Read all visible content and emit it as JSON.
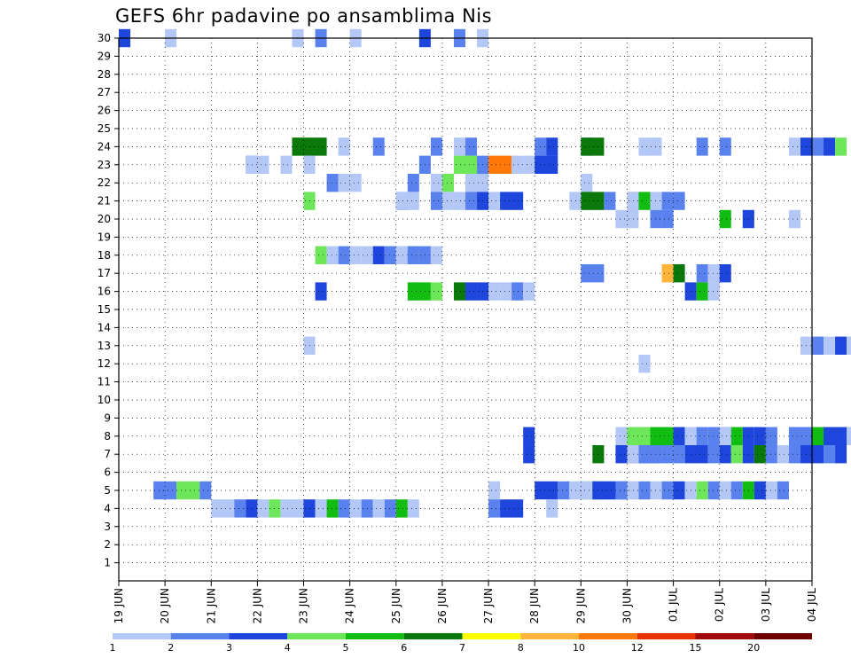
{
  "title": "GEFS 6hr padavine po ansamblima Nis",
  "chart_data": {
    "type": "heatmap",
    "title": "GEFS 6hr padavine po ansamblima Nis",
    "y_ticks": [
      1,
      2,
      3,
      4,
      5,
      6,
      7,
      8,
      9,
      10,
      11,
      12,
      13,
      14,
      15,
      16,
      17,
      18,
      19,
      20,
      21,
      22,
      23,
      24,
      25,
      26,
      27,
      28,
      29,
      30
    ],
    "ylim": [
      0,
      30
    ],
    "x_ticks": [
      "19 JUN",
      "20 JUN",
      "21 JUN",
      "22 JUN",
      "23 JUN",
      "24 JUN",
      "25 JUN",
      "26 JUN",
      "27 JUN",
      "28 JUN",
      "29 JUN",
      "30 JUN",
      "01 JUL",
      "02 JUL",
      "03 JUL",
      "04 JUL"
    ],
    "x_steps_per_day": 4,
    "grid": true,
    "colorbar": {
      "labels": [
        "1",
        "2",
        "3",
        "4",
        "5",
        "6",
        "7",
        "8",
        "10",
        "12",
        "15",
        "20"
      ],
      "colors": [
        "#b4c8f8",
        "#5a82ee",
        "#1e46dc",
        "#6ee65a",
        "#10bd10",
        "#0a780a",
        "#ffff00",
        "#ffb43c",
        "#ff780a",
        "#e63205",
        "#a00a0a",
        "#6e0000"
      ]
    },
    "cells": [
      [
        0,
        0,
        3
      ],
      [
        3,
        0,
        1
      ],
      [
        4,
        1,
        1
      ],
      [
        5,
        1,
        2
      ],
      [
        4,
        3,
        1
      ],
      [
        4,
        4,
        1
      ],
      [
        15,
        15,
        1
      ],
      [
        17,
        17,
        2
      ],
      [
        20,
        20,
        1
      ],
      [
        26,
        26,
        3
      ],
      [
        29,
        29,
        2
      ],
      [
        31,
        31,
        1
      ],
      [
        15,
        16,
        4
      ],
      [
        15,
        17,
        6
      ],
      [
        19,
        19,
        1
      ],
      [
        22,
        22,
        2
      ],
      [
        27,
        27,
        2
      ],
      [
        29,
        29,
        1
      ],
      [
        30,
        30,
        2
      ],
      [
        36,
        36,
        2
      ],
      [
        37,
        37,
        3
      ],
      [
        40,
        40,
        2
      ],
      [
        40,
        41,
        6
      ],
      [
        45,
        45,
        1
      ],
      [
        46,
        46,
        1
      ],
      [
        50,
        50,
        2
      ],
      [
        52,
        52,
        2
      ],
      [
        58,
        58,
        1
      ],
      [
        59,
        59,
        3
      ],
      [
        60,
        60,
        2
      ],
      [
        61,
        61,
        3
      ],
      [
        62,
        62,
        4
      ],
      [
        64,
        64,
        1
      ],
      [
        65,
        65,
        1
      ],
      [
        66,
        66,
        1
      ],
      [
        67,
        67,
        3
      ],
      [
        68,
        68,
        5
      ],
      [
        69,
        69,
        5
      ],
      [
        70,
        70,
        1
      ],
      [
        71,
        71,
        3
      ],
      [
        3,
        2,
        2
      ],
      [
        11,
        11,
        3
      ],
      [
        11,
        12,
        1
      ],
      [
        14,
        14,
        1
      ],
      [
        16,
        16,
        1
      ],
      [
        26,
        26,
        2
      ],
      [
        29,
        30,
        4
      ],
      [
        31,
        31,
        2
      ],
      [
        32,
        33,
        9
      ],
      [
        34,
        34,
        1
      ],
      [
        35,
        35,
        1
      ],
      [
        36,
        35,
        2
      ],
      [
        36,
        37,
        3
      ],
      [
        7,
        6,
        1
      ],
      [
        18,
        18,
        2
      ],
      [
        19,
        19,
        1
      ],
      [
        20,
        20,
        1
      ],
      [
        25,
        25,
        2
      ],
      [
        27,
        27,
        1
      ],
      [
        28,
        28,
        4
      ],
      [
        30,
        31,
        1
      ],
      [
        37,
        36,
        2
      ],
      [
        40,
        40,
        1
      ],
      [
        40,
        41,
        6
      ],
      [
        42,
        42,
        2
      ],
      [
        44,
        44,
        10
      ],
      [
        16,
        16,
        4
      ],
      [
        24,
        24,
        2
      ],
      [
        24,
        25,
        1
      ],
      [
        27,
        27,
        2
      ],
      [
        28,
        28,
        1
      ],
      [
        29,
        29,
        1
      ],
      [
        30,
        30,
        2
      ],
      [
        31,
        31,
        3
      ],
      [
        32,
        32,
        1
      ],
      [
        33,
        34,
        3
      ],
      [
        39,
        39,
        1
      ],
      [
        44,
        44,
        1
      ],
      [
        45,
        45,
        5
      ],
      [
        46,
        46,
        1
      ],
      [
        47,
        47,
        2
      ],
      [
        48,
        48,
        2
      ],
      [
        49,
        49,
        3
      ],
      [
        50,
        50,
        5
      ],
      [
        51,
        51,
        1
      ],
      [
        17,
        17,
        3
      ],
      [
        25,
        25,
        1
      ],
      [
        25,
        26,
        5
      ],
      [
        27,
        27,
        4
      ],
      [
        29,
        29,
        6
      ],
      [
        30,
        30,
        3
      ],
      [
        31,
        31,
        3
      ],
      [
        32,
        32,
        1
      ],
      [
        33,
        33,
        1
      ],
      [
        34,
        34,
        2
      ],
      [
        35,
        35,
        1
      ],
      [
        43,
        43,
        3
      ],
      [
        44,
        44,
        11
      ],
      [
        45,
        46,
        3
      ],
      [
        35,
        35,
        3
      ],
      [
        41,
        41,
        6
      ],
      [
        44,
        44,
        1
      ],
      [
        45,
        45,
        2
      ],
      [
        46,
        46,
        2
      ],
      [
        47,
        47,
        2
      ],
      [
        48,
        48,
        2
      ],
      [
        49,
        50,
        3
      ],
      [
        51,
        51,
        2
      ],
      [
        52,
        52,
        3
      ],
      [
        53,
        53,
        4
      ],
      [
        54,
        54,
        3
      ],
      [
        55,
        55,
        6
      ],
      [
        56,
        56,
        2
      ],
      [
        57,
        57,
        1
      ],
      [
        58,
        58,
        2
      ],
      [
        59,
        59,
        3
      ],
      [
        60,
        60,
        3
      ],
      [
        61,
        61,
        2
      ],
      [
        62,
        62,
        3
      ],
      [
        63,
        63,
        5
      ],
      [
        64,
        65,
        3
      ],
      [
        66,
        67,
        2
      ],
      [
        35,
        35,
        3
      ],
      [
        43,
        43,
        1
      ],
      [
        44,
        45,
        4
      ],
      [
        46,
        47,
        5
      ],
      [
        48,
        48,
        3
      ],
      [
        49,
        49,
        1
      ],
      [
        50,
        50,
        2
      ],
      [
        51,
        51,
        2
      ],
      [
        52,
        52,
        3
      ],
      [
        53,
        53,
        5
      ],
      [
        54,
        54,
        3
      ],
      [
        55,
        55,
        3
      ],
      [
        56,
        56,
        2
      ],
      [
        58,
        59,
        2
      ],
      [
        60,
        60,
        5
      ],
      [
        61,
        62,
        3
      ],
      [
        63,
        63,
        1
      ],
      [
        64,
        64,
        4
      ],
      [
        65,
        65,
        1
      ],
      [
        52,
        52,
        1
      ],
      [
        64,
        64,
        2
      ],
      [
        65,
        65,
        1
      ],
      [
        66,
        66,
        5
      ],
      [
        67,
        67,
        6
      ],
      [
        68,
        68,
        1
      ],
      [
        45,
        45,
        1
      ],
      [
        47,
        47,
        8
      ],
      [
        48,
        48,
        6
      ],
      [
        50,
        50,
        2
      ],
      [
        51,
        51,
        1
      ],
      [
        52,
        52,
        3
      ],
      [
        40,
        41,
        2
      ],
      [
        43,
        43,
        1
      ],
      [
        44,
        44,
        1
      ],
      [
        46,
        46,
        2
      ],
      [
        47,
        47,
        2
      ],
      [
        52,
        52,
        5
      ],
      [
        54,
        54,
        3
      ],
      [
        58,
        58,
        1
      ],
      [
        59,
        59,
        1
      ],
      [
        60,
        60,
        2
      ],
      [
        61,
        61,
        1
      ],
      [
        62,
        62,
        3
      ],
      [
        63,
        63,
        1
      ],
      [
        16,
        16,
        1
      ],
      [
        17,
        17,
        4
      ],
      [
        18,
        18,
        1
      ],
      [
        19,
        19,
        2
      ],
      [
        20,
        20,
        1
      ],
      [
        21,
        21,
        1
      ],
      [
        22,
        22,
        3
      ],
      [
        23,
        23,
        2
      ],
      [
        24,
        24,
        1
      ],
      [
        25,
        25,
        4
      ],
      [
        26,
        26,
        2
      ],
      [
        24,
        24,
        1
      ],
      [
        25,
        25,
        2
      ],
      [
        27,
        27,
        1
      ],
      [
        32,
        32,
        1
      ],
      [
        36,
        37,
        3
      ],
      [
        39,
        39,
        1
      ],
      [
        40,
        40,
        5
      ],
      [
        41,
        41,
        6
      ],
      [
        42,
        42,
        2
      ],
      [
        43,
        43,
        3
      ],
      [
        44,
        44,
        1
      ],
      [
        3,
        4,
        2
      ],
      [
        5,
        6,
        4
      ],
      [
        7,
        7,
        2
      ],
      [
        8,
        9,
        1
      ],
      [
        10,
        10,
        2
      ],
      [
        11,
        11,
        3
      ],
      [
        12,
        12,
        1
      ],
      [
        13,
        13,
        4
      ],
      [
        14,
        14,
        1
      ],
      [
        15,
        15,
        1
      ],
      [
        16,
        16,
        3
      ],
      [
        17,
        17,
        1
      ],
      [
        18,
        18,
        5
      ],
      [
        19,
        19,
        2
      ],
      [
        20,
        20,
        1
      ],
      [
        21,
        21,
        2
      ],
      [
        22,
        22,
        1
      ],
      [
        23,
        23,
        2
      ],
      [
        24,
        24,
        5
      ],
      [
        25,
        25,
        1
      ],
      [
        32,
        32,
        2
      ],
      [
        33,
        34,
        3
      ],
      [
        37,
        37,
        1
      ],
      [
        38,
        38,
        2
      ],
      [
        39,
        39,
        1
      ],
      [
        40,
        40,
        1
      ],
      [
        41,
        42,
        3
      ],
      [
        43,
        43,
        2
      ],
      [
        44,
        44,
        1
      ],
      [
        45,
        45,
        2
      ],
      [
        46,
        46,
        1
      ],
      [
        47,
        47,
        2
      ],
      [
        48,
        48,
        3
      ],
      [
        49,
        49,
        1
      ],
      [
        50,
        50,
        4
      ],
      [
        51,
        51,
        2
      ],
      [
        52,
        52,
        1
      ],
      [
        53,
        53,
        2
      ],
      [
        54,
        54,
        5
      ],
      [
        55,
        55,
        3
      ],
      [
        56,
        56,
        1
      ],
      [
        57,
        57,
        2
      ]
    ],
    "hovmoller": true
  }
}
